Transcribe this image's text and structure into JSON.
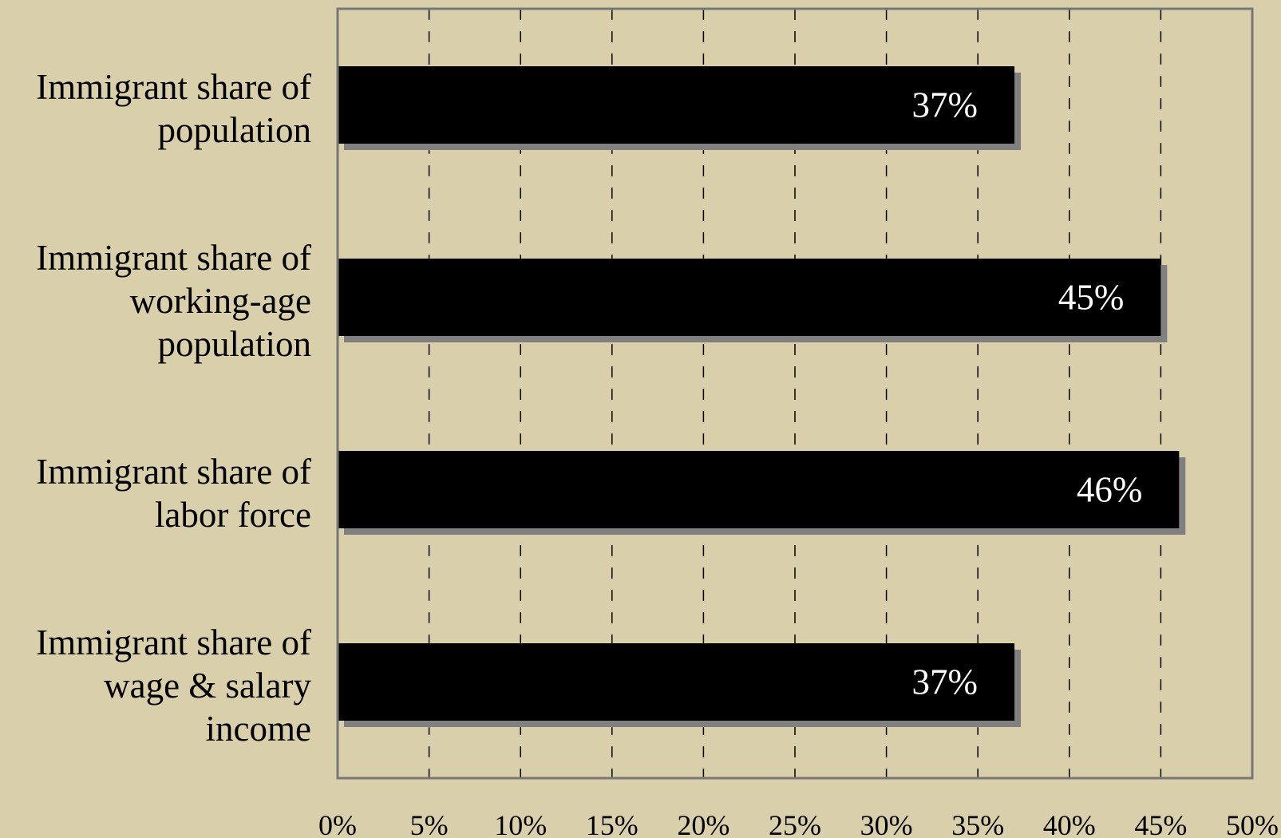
{
  "chart_data": {
    "type": "bar",
    "orientation": "horizontal",
    "categories": [
      "Immigrant share of population",
      "Immigrant share of working-age population",
      "Immigrant share of labor force",
      "Immigrant share of wage & salary income"
    ],
    "values": [
      37,
      45,
      46,
      37
    ],
    "value_labels": [
      "37%",
      "45%",
      "46%",
      "37%"
    ],
    "color": "#000000",
    "xlim": [
      0,
      50
    ],
    "xticks": [
      {
        "value": 0,
        "label": "0%"
      },
      {
        "value": 5,
        "label": "5%"
      },
      {
        "value": 10,
        "label": "10%"
      },
      {
        "value": 15,
        "label": "15%"
      },
      {
        "value": 20,
        "label": "20%"
      },
      {
        "value": 25,
        "label": "25%"
      },
      {
        "value": 30,
        "label": "30%"
      },
      {
        "value": 35,
        "label": "35%"
      },
      {
        "value": 40,
        "label": "40%"
      },
      {
        "value": 45,
        "label": "45%"
      },
      {
        "value": 50,
        "label": "50%"
      }
    ],
    "grid": true
  }
}
